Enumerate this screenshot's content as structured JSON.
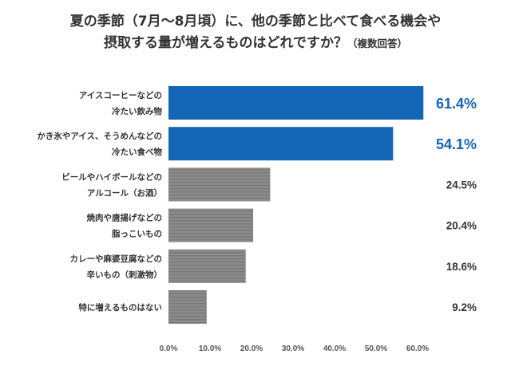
{
  "title": {
    "line1": "夏の季節（7月～8月頃）に、他の季節と比べて食べる機会や",
    "line2": "摂取する量が増えるものはどれですか？",
    "note": "（複数回答）"
  },
  "colors": {
    "highlight": "#1565b7",
    "neutral": "#8a8a8a",
    "neutral_stripe": "#7a7a7a",
    "text": "#333333",
    "axis": "#555555"
  },
  "chart_data": {
    "type": "bar",
    "orientation": "horizontal",
    "categories": [
      [
        "アイスコーヒーなどの",
        "冷たい飲み物"
      ],
      [
        "かき氷やアイス、そうめんなどの",
        "冷たい食べ物"
      ],
      [
        "ビールやハイボールなどの",
        "アルコール（お酒）"
      ],
      [
        "焼肉や唐揚げなどの",
        "脂っこいもの"
      ],
      [
        "カレーや麻婆豆腐などの",
        "辛いもの（刺激物）"
      ],
      [
        "特に増えるものはない"
      ]
    ],
    "values": [
      61.4,
      54.1,
      24.5,
      20.4,
      18.6,
      9.2
    ],
    "value_labels": [
      "61.4%",
      "54.1%",
      "24.5%",
      "20.4%",
      "18.6%",
      "9.2%"
    ],
    "highlighted": [
      true,
      true,
      false,
      false,
      false,
      false
    ],
    "xlim": [
      0,
      60
    ],
    "xticks": [
      "0.0%",
      "10.0%",
      "20.0%",
      "30.0%",
      "40.0%",
      "50.0%",
      "60.0%"
    ],
    "xlabel": "",
    "ylabel": "",
    "grid": false,
    "legend": "none"
  }
}
